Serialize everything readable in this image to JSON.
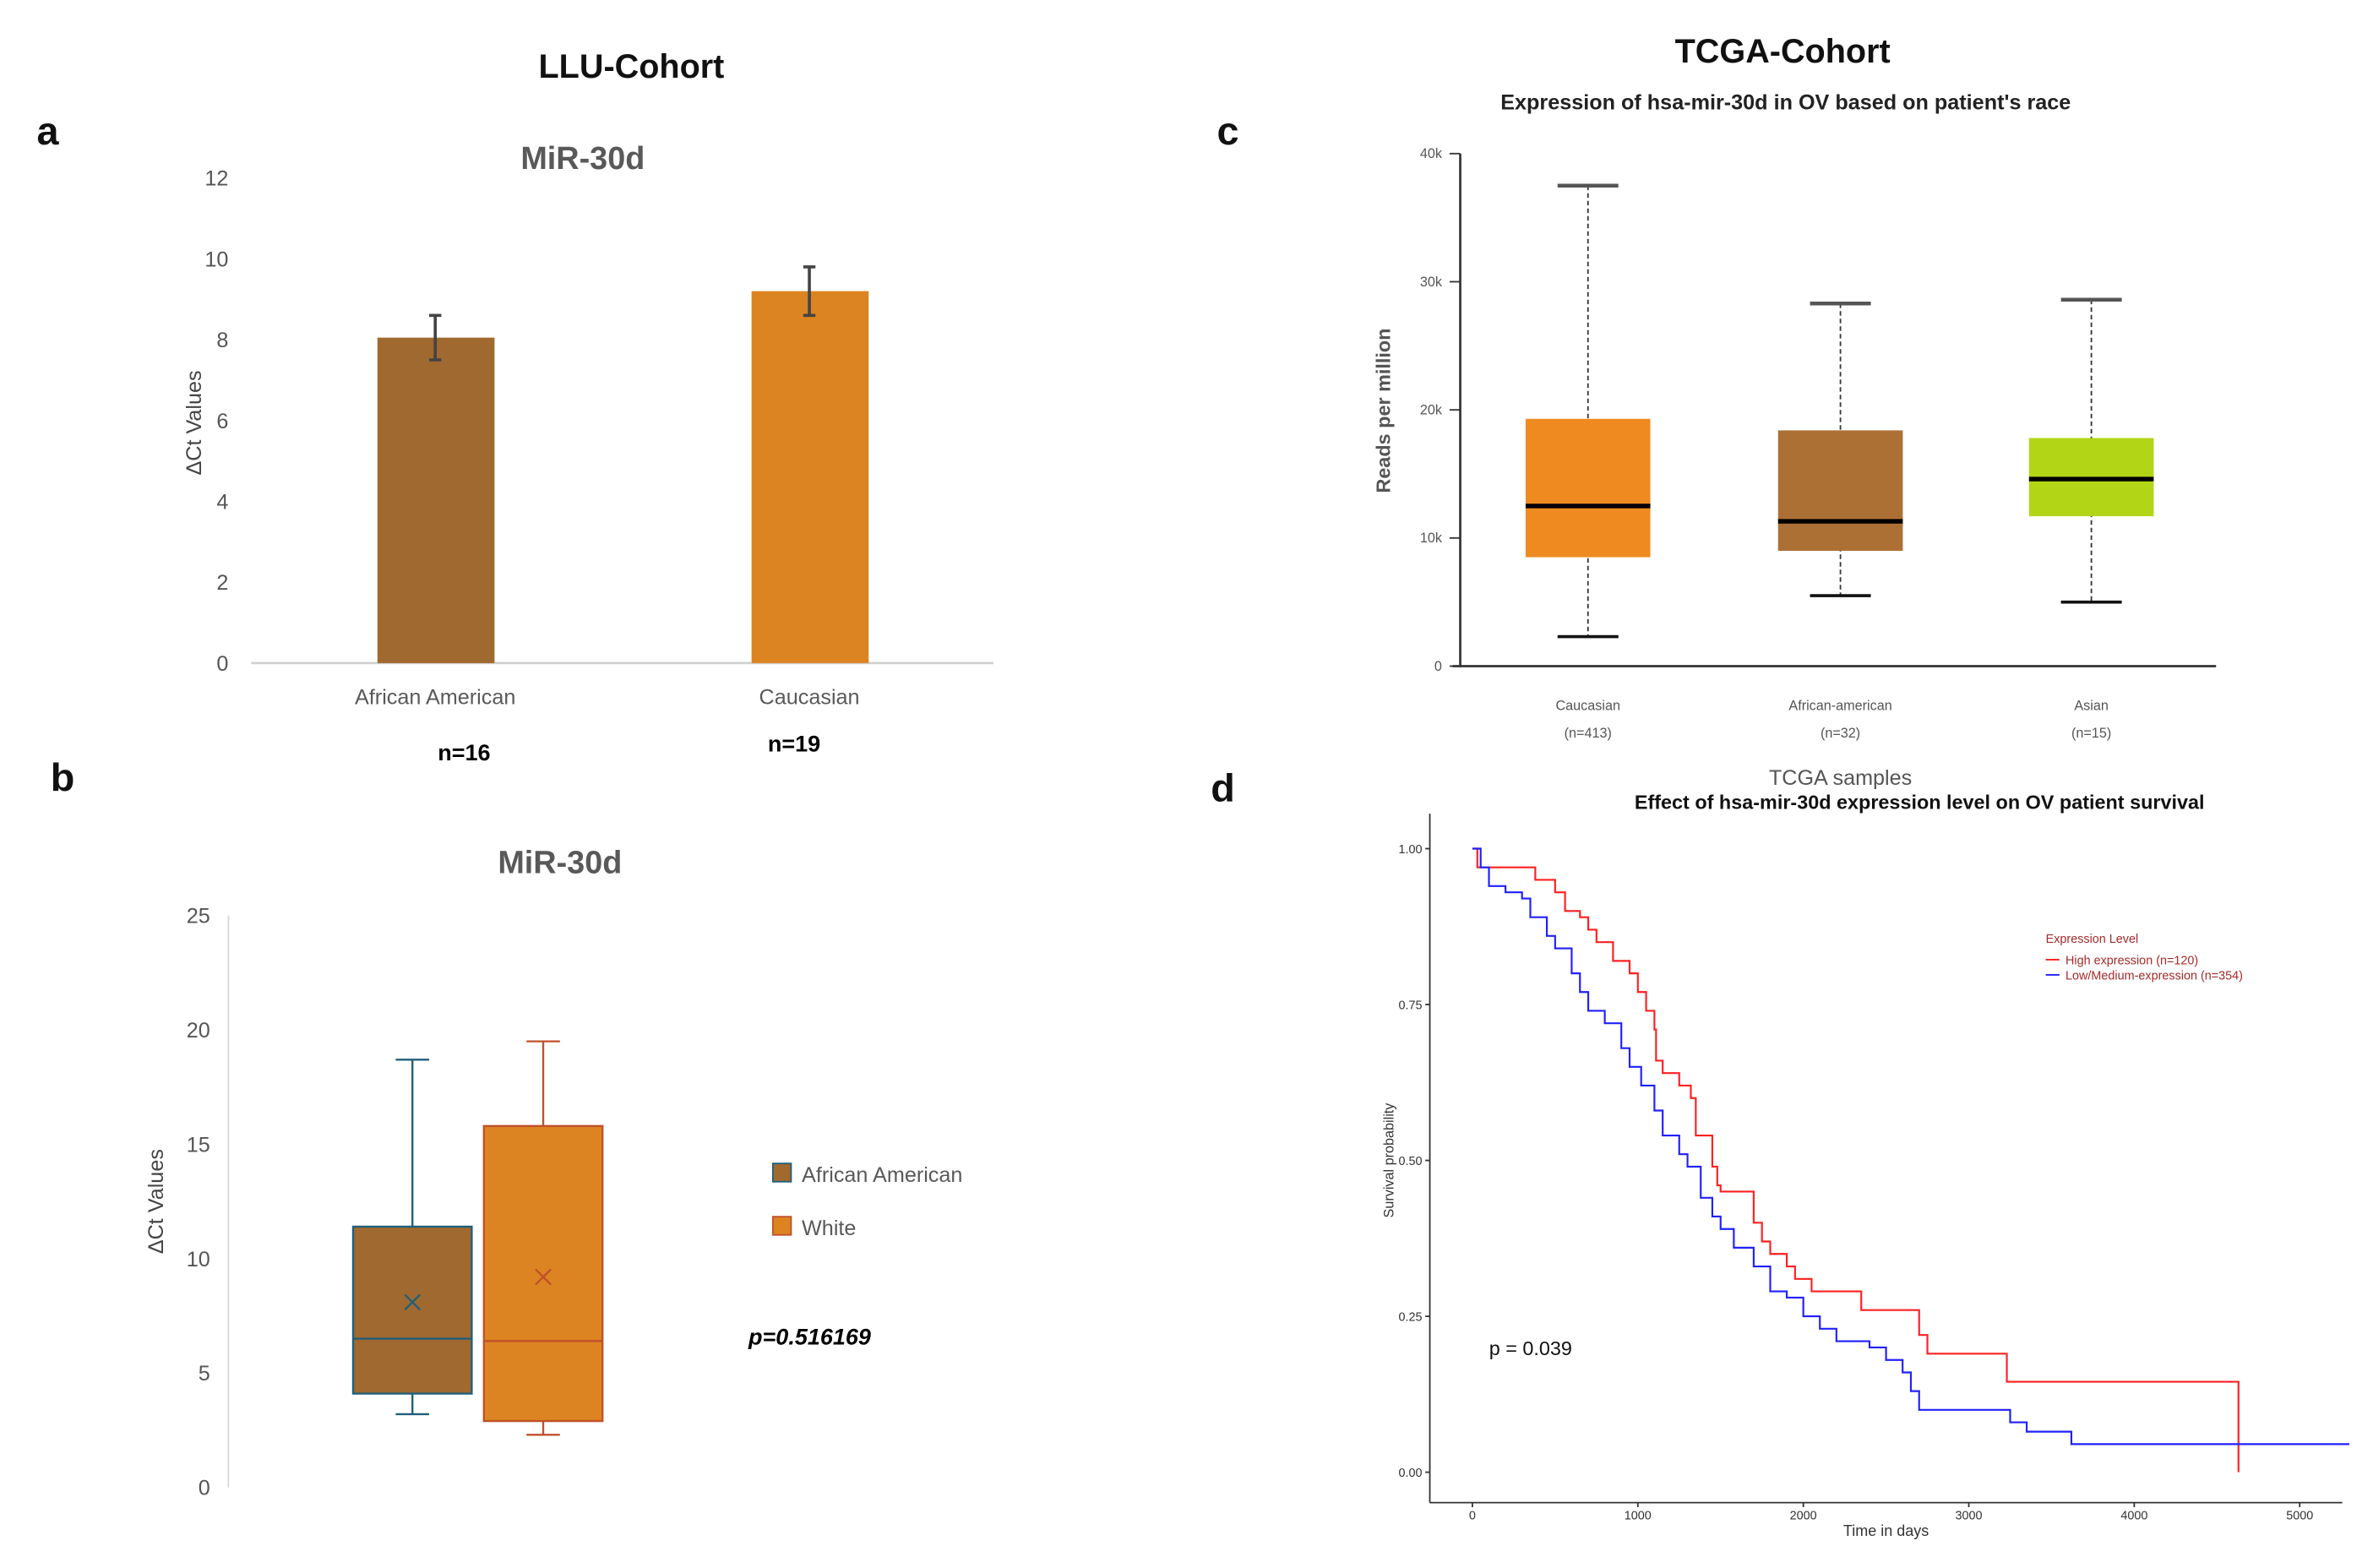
{
  "headers": {
    "left": "LLU-Cohort",
    "right": "TCGA-Cohort"
  },
  "panel_letters": [
    "a",
    "b",
    "c",
    "d"
  ],
  "chart_data": [
    {
      "type": "bar",
      "panel": "a",
      "title": "MiR-30d",
      "ylabel": "ΔCt Values",
      "ylim": [
        0,
        12
      ],
      "yticks": [
        "0",
        "2",
        "4",
        "6",
        "8",
        "10",
        "12"
      ],
      "categories": [
        "African American",
        "Caucasian"
      ],
      "values": [
        8.05,
        9.2
      ],
      "error_low": [
        7.5,
        8.6
      ],
      "error_high": [
        8.6,
        9.8
      ],
      "n_labels": [
        "n=16",
        "n=19"
      ],
      "colors": [
        "#a0692f",
        "#dc8422"
      ],
      "grid": false
    },
    {
      "type": "box",
      "panel": "b",
      "title": "MiR-30d",
      "ylabel": "ΔCt Values",
      "ylim": [
        0,
        25
      ],
      "yticks": [
        "0",
        "5",
        "10",
        "15",
        "20",
        "25"
      ],
      "series": [
        {
          "name": "African American",
          "min": 3.2,
          "q1": 4.1,
          "median": 6.5,
          "mean": 8.1,
          "q3": 11.4,
          "max": 18.7,
          "color": "#a0692f",
          "stroke": "#1f5f7a"
        },
        {
          "name": "White",
          "min": 2.3,
          "q1": 2.9,
          "median": 6.4,
          "mean": 9.2,
          "q3": 15.8,
          "max": 19.5,
          "color": "#dc8422",
          "stroke": "#c0502a"
        }
      ],
      "legend_placement": "right",
      "annotation": "p=0.516169",
      "grid": false
    },
    {
      "type": "box",
      "panel": "c",
      "title": "Expression of hsa-mir-30d in OV based on patient's race",
      "ylabel": "Reads per million",
      "ylim": [
        0,
        40000
      ],
      "yticks": [
        "0",
        "10k",
        "20k",
        "30k",
        "40k"
      ],
      "categories": [
        "Caucasian",
        "African-american",
        "Asian"
      ],
      "category_n": [
        "(n=413)",
        "(n=32)",
        "(n=15)"
      ],
      "series": [
        {
          "min": 2300,
          "q1": 8500,
          "median": 12500,
          "q3": 19300,
          "max": 37500,
          "color": "#ef8a20"
        },
        {
          "min": 5500,
          "q1": 9000,
          "median": 11300,
          "q3": 18400,
          "max": 28300,
          "color": "#ad7034"
        },
        {
          "min": 5000,
          "q1": 11700,
          "median": 14600,
          "q3": 17800,
          "max": 28600,
          "color": "#b2d616"
        }
      ],
      "grid": false
    },
    {
      "type": "line",
      "panel": "d",
      "supertitle": "TCGA samples",
      "title": "Effect of hsa-mir-30d expression level on OV patient survival",
      "xlabel": "Time in days",
      "ylabel": "Survival probability",
      "xlim": [
        0,
        5300
      ],
      "ylim": [
        0,
        1
      ],
      "xticks": [
        "0",
        "1000",
        "2000",
        "3000",
        "4000",
        "5000"
      ],
      "yticks": [
        "0.00",
        "0.25",
        "0.50",
        "0.75",
        "1.00"
      ],
      "legend_title": "Expression Level",
      "legend_placement": "top-right",
      "annotation": "p = 0.039",
      "series": [
        {
          "name": "High expression (n=120)",
          "color": "#ff2020",
          "step": true,
          "x": [
            0,
            30,
            350,
            380,
            500,
            560,
            650,
            700,
            750,
            850,
            950,
            1000,
            1050,
            1100,
            1110,
            1150,
            1250,
            1320,
            1350,
            1450,
            1480,
            1500,
            1700,
            1750,
            1800,
            1900,
            1950,
            2050,
            2350,
            2700,
            2750,
            3230,
            4630
          ],
          "y": [
            1.0,
            0.97,
            0.97,
            0.95,
            0.93,
            0.9,
            0.89,
            0.87,
            0.85,
            0.82,
            0.8,
            0.77,
            0.74,
            0.71,
            0.66,
            0.64,
            0.62,
            0.6,
            0.54,
            0.49,
            0.46,
            0.45,
            0.4,
            0.37,
            0.35,
            0.33,
            0.31,
            0.29,
            0.26,
            0.22,
            0.19,
            0.145,
            0.0
          ]
        },
        {
          "name": "Low/Medium-expression (n=354)",
          "color": "#2020ff",
          "step": true,
          "x": [
            0,
            50,
            100,
            200,
            300,
            350,
            450,
            500,
            600,
            650,
            700,
            800,
            900,
            950,
            1020,
            1100,
            1150,
            1250,
            1300,
            1380,
            1450,
            1500,
            1580,
            1700,
            1800,
            1900,
            2000,
            2100,
            2200,
            2400,
            2500,
            2600,
            2650,
            2700,
            3250,
            3350,
            3620,
            5300
          ],
          "y": [
            1.0,
            0.97,
            0.94,
            0.93,
            0.92,
            0.89,
            0.86,
            0.84,
            0.8,
            0.77,
            0.74,
            0.72,
            0.68,
            0.65,
            0.62,
            0.58,
            0.54,
            0.51,
            0.49,
            0.44,
            0.41,
            0.39,
            0.36,
            0.33,
            0.29,
            0.28,
            0.25,
            0.23,
            0.21,
            0.2,
            0.18,
            0.16,
            0.13,
            0.1,
            0.08,
            0.065,
            0.045,
            0.045
          ]
        }
      ],
      "grid": false
    }
  ]
}
